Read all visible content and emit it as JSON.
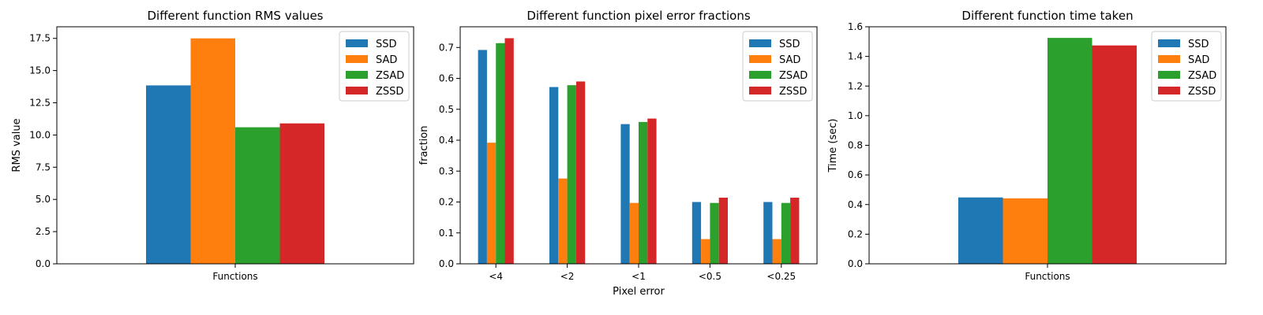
{
  "chart_data": [
    {
      "type": "bar",
      "title": "Different function RMS values",
      "xlabel": "",
      "ylabel": "RMS value",
      "categories": [
        "Functions"
      ],
      "series": [
        {
          "name": "SSD",
          "values": [
            13.85
          ]
        },
        {
          "name": "SAD",
          "values": [
            17.5
          ]
        },
        {
          "name": "ZSAD",
          "values": [
            10.6
          ]
        },
        {
          "name": "ZSSD",
          "values": [
            10.9
          ]
        }
      ],
      "ylim": [
        0,
        18.4
      ],
      "yticks": [
        "0.0",
        "2.5",
        "5.0",
        "7.5",
        "10.0",
        "12.5",
        "15.0",
        "17.5"
      ],
      "legend": "top-right",
      "grid": false
    },
    {
      "type": "bar",
      "title": "Different function pixel error fractions",
      "xlabel": "Pixel error",
      "ylabel": "fraction",
      "categories": [
        "<4",
        "<2",
        "<1",
        "<0.5",
        "<0.25"
      ],
      "series": [
        {
          "name": "SSD",
          "values": [
            0.692,
            0.572,
            0.452,
            0.2,
            0.2
          ]
        },
        {
          "name": "SAD",
          "values": [
            0.392,
            0.276,
            0.197,
            0.08,
            0.08
          ]
        },
        {
          "name": "ZSAD",
          "values": [
            0.714,
            0.578,
            0.459,
            0.197,
            0.197
          ]
        },
        {
          "name": "ZSSD",
          "values": [
            0.73,
            0.59,
            0.47,
            0.214,
            0.214
          ]
        }
      ],
      "ylim": [
        0,
        0.767
      ],
      "yticks": [
        "0.0",
        "0.1",
        "0.2",
        "0.3",
        "0.4",
        "0.5",
        "0.6",
        "0.7"
      ],
      "legend": "top-right",
      "grid": false
    },
    {
      "type": "bar",
      "title": "Different function time taken",
      "xlabel": "",
      "ylabel": "Time (sec)",
      "categories": [
        "Functions"
      ],
      "series": [
        {
          "name": "SSD",
          "values": [
            0.448
          ]
        },
        {
          "name": "SAD",
          "values": [
            0.442
          ]
        },
        {
          "name": "ZSAD",
          "values": [
            1.525
          ]
        },
        {
          "name": "ZSSD",
          "values": [
            1.474
          ]
        }
      ],
      "ylim": [
        0,
        1.6
      ],
      "yticks": [
        "0.0",
        "0.2",
        "0.4",
        "0.6",
        "0.8",
        "1.0",
        "1.2",
        "1.4",
        "1.6"
      ],
      "legend": "top-right",
      "grid": false
    }
  ],
  "colors": {
    "SSD": "#1f77b4",
    "SAD": "#ff7f0e",
    "ZSAD": "#2ca02c",
    "ZSSD": "#d62728"
  }
}
